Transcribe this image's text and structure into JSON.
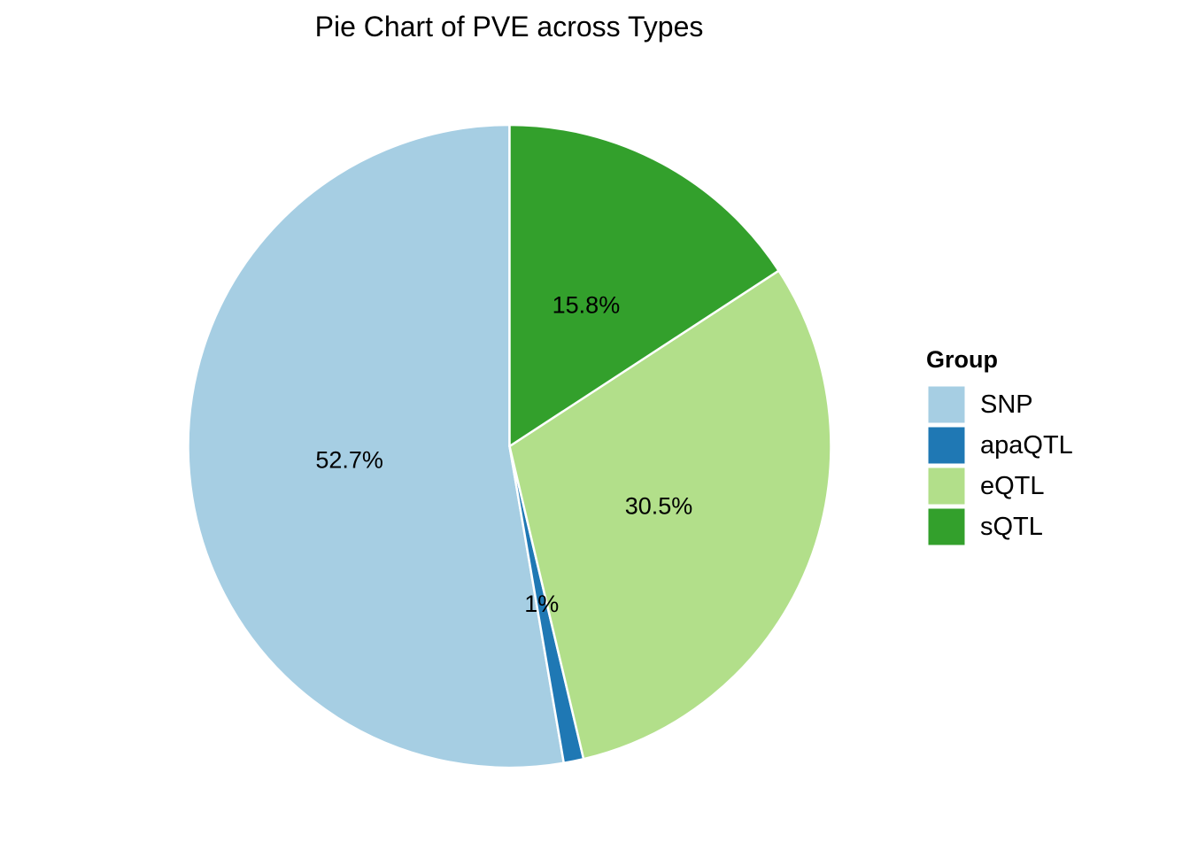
{
  "chart_data": {
    "type": "pie",
    "title": "Pie Chart of PVE across Types",
    "legend_title": "Group",
    "legend_position": "right",
    "start_angle": "12 o'clock",
    "direction": "counterclockwise",
    "slices": [
      {
        "name": "SNP",
        "value": 52.7,
        "label": "52.7%",
        "color": "#A6CEE3"
      },
      {
        "name": "apaQTL",
        "value": 1.0,
        "label": "1%",
        "color": "#1F78B4"
      },
      {
        "name": "eQTL",
        "value": 30.5,
        "label": "30.5%",
        "color": "#B2DF8A"
      },
      {
        "name": "sQTL",
        "value": 15.8,
        "label": "15.8%",
        "color": "#33A02C"
      }
    ],
    "slice_border_color": "#FFFFFF"
  }
}
